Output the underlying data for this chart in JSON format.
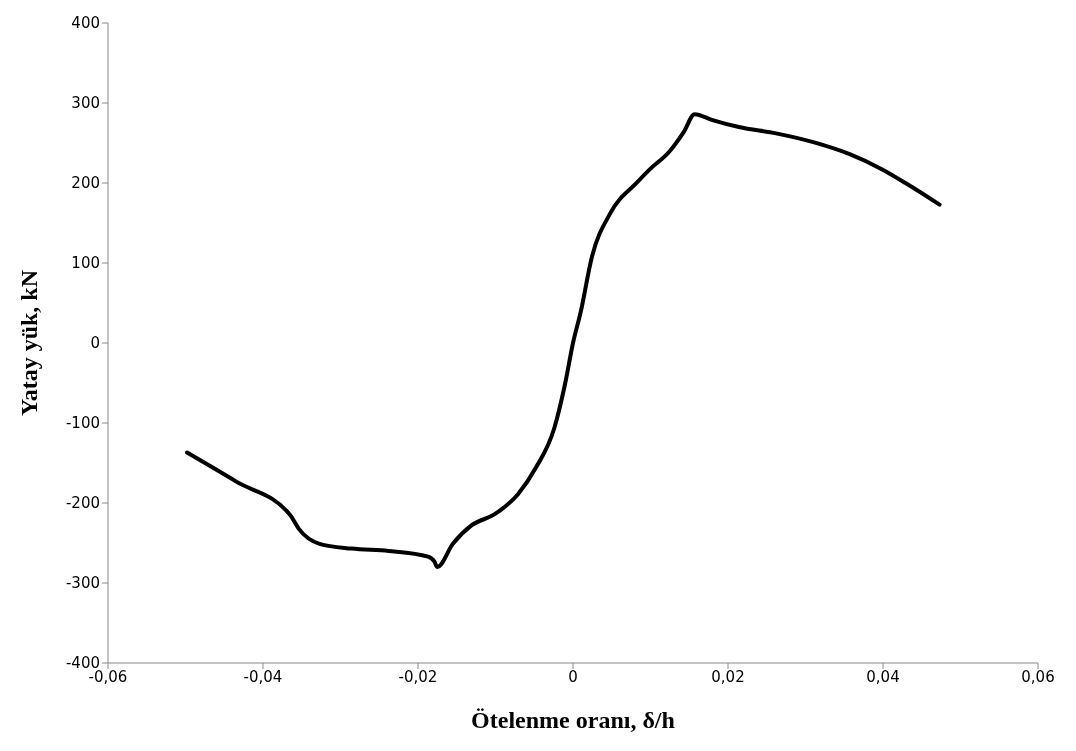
{
  "chart_data": {
    "type": "line",
    "xlabel": "Ötelenme oranı, δ/h",
    "ylabel": "Yatay yük, kN",
    "xlim": [
      -0.06,
      0.06
    ],
    "ylim": [
      -400,
      400
    ],
    "xticks": [
      {
        "value": -0.06,
        "label": "-0,06"
      },
      {
        "value": -0.04,
        "label": "-0,04"
      },
      {
        "value": -0.02,
        "label": "-0,02"
      },
      0,
      {
        "value": 0.02,
        "label": "0,02"
      },
      {
        "value": 0.04,
        "label": "0,04"
      },
      {
        "value": 0.06,
        "label": "0,06"
      }
    ],
    "yticks": [
      -400,
      -300,
      -200,
      -100,
      0,
      100,
      200,
      300,
      400
    ],
    "grid": false,
    "legend": false,
    "marker": "none",
    "line_style": "solid",
    "series": [
      {
        "color": "#000000",
        "x": [
          -0.0498,
          -0.0435,
          -0.0365,
          -0.0354,
          -0.0327,
          -0.0286,
          -0.0238,
          -0.0187,
          -0.0179,
          -0.0175,
          -0.0155,
          -0.0131,
          -0.0101,
          -0.0071,
          -0.0048,
          -0.0024,
          -0.001,
          0,
          0.001,
          0.0024,
          0.0048,
          0.0083,
          0.0099,
          0.0125,
          0.0143,
          0.0157,
          0.0179,
          0.0214,
          0.0262,
          0.031,
          0.0357,
          0.0399,
          0.0429,
          0.0473
        ],
        "values": [
          -137,
          -173,
          -215,
          -232,
          -251,
          -257,
          -260,
          -267,
          -273,
          -280,
          -251,
          -228,
          -214,
          -189,
          -156,
          -106,
          -50,
          0,
          39,
          106,
          162,
          201,
          217,
          240,
          264,
          286,
          279,
          270,
          262,
          251,
          236,
          217,
          200,
          173
        ]
      }
    ]
  }
}
